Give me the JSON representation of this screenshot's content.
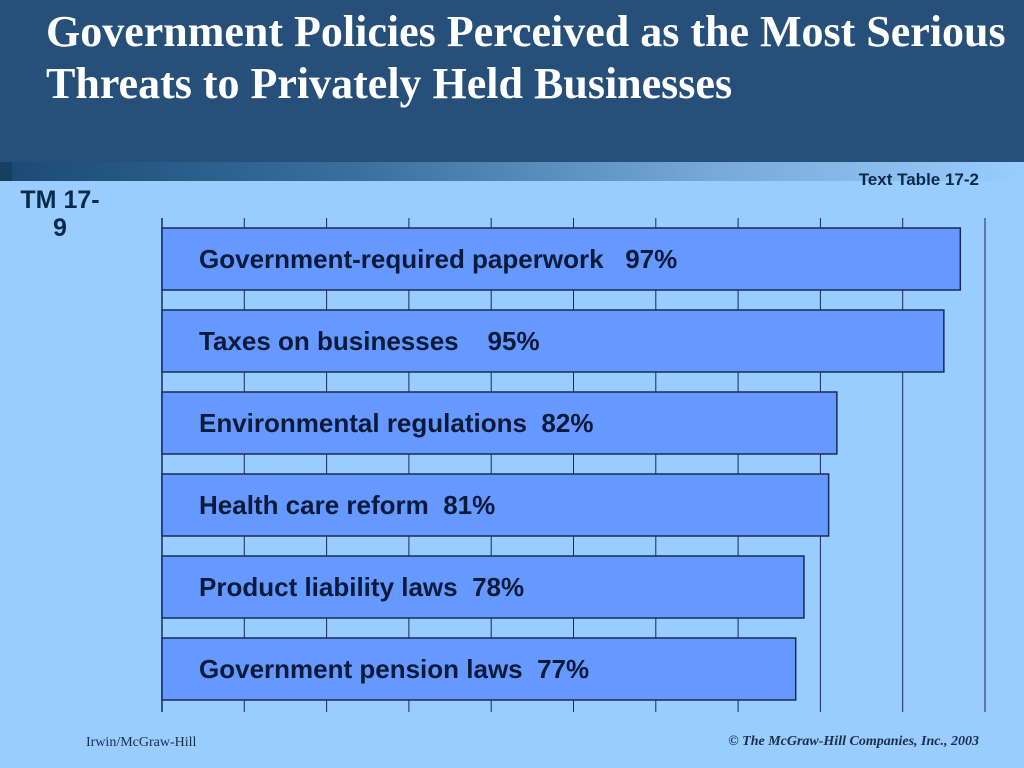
{
  "slide": {
    "title": "Government Policies Perceived as the Most Serious Threats to Privately Held Businesses",
    "source": "Text Table 17-2",
    "tm_label": "TM 17-9",
    "footer_left": "Irwin/McGraw-Hill",
    "footer_right": "© The McGraw-Hill Companies, Inc., 2003"
  },
  "colors": {
    "bar_fill": "#6699ff",
    "bar_stroke": "#1a2a55",
    "title_bg": "#264f7a",
    "background": "#99ccff",
    "grid": "#1a2a55"
  },
  "chart_data": {
    "type": "bar",
    "orientation": "horizontal",
    "categories": [
      "Government-required paperwork",
      "Taxes on businesses",
      "Environmental regulations",
      "Health care reform",
      "Product liability laws",
      "Government pension laws"
    ],
    "values": [
      97,
      95,
      82,
      81,
      78,
      77
    ],
    "labels": [
      "Government-required paperwork   97%",
      "Taxes on businesses    95%",
      "Environmental regulations  82%",
      "Health care reform  81%",
      "Product liability laws  78%",
      "Government pension laws  77%"
    ],
    "xlim": [
      0,
      100
    ],
    "grid": true,
    "title": "",
    "xlabel": "",
    "ylabel": ""
  }
}
